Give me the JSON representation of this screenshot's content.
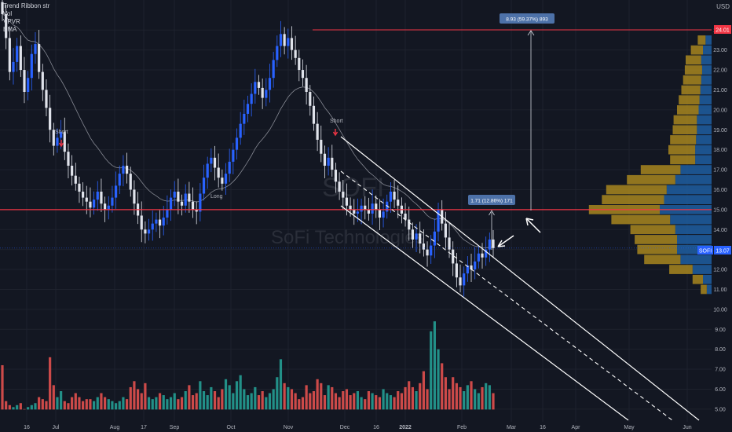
{
  "legend": {
    "items": [
      "Trend Ribbon str",
      "Vol",
      "VPVR",
      "EMA"
    ]
  },
  "currency": "USD",
  "watermark": {
    "ticker": "SOFI",
    "name": "SoFi Technologies"
  },
  "chart_data": {
    "type": "candlestick",
    "symbol": "SOFI",
    "x_ticks": [
      "16",
      "Jul",
      "Aug",
      "17",
      "Sep",
      "Oct",
      "Nov",
      "Dec",
      "16",
      "2022",
      "Feb",
      "Mar",
      "16",
      "Apr",
      "May",
      "Jun"
    ],
    "y_ticks": [
      "24.00",
      "23.00",
      "22.00",
      "21.00",
      "20.00",
      "19.00",
      "18.00",
      "17.00",
      "16.00",
      "15.00",
      "14.00",
      "13.00",
      "12.00",
      "11.00",
      "10.00",
      "9.00",
      "8.00",
      "7.00",
      "6.00",
      "5.00"
    ],
    "ylim": [
      4.9,
      25.2
    ],
    "last_price": {
      "ticker": "SOFI",
      "value": "13.07",
      "price": 13.07
    },
    "resistance_level": 15.0,
    "top_level": {
      "label": "24.01",
      "price": 24.01
    },
    "measure_labels": [
      "8.93 (59.37%) 893",
      "1.71 (12.86%) 171"
    ],
    "signal_labels": [
      "Short",
      "Long",
      "Short"
    ],
    "close": [
      24.8,
      23.6,
      21.9,
      22.4,
      23.2,
      22.0,
      20.9,
      21.6,
      22.8,
      23.3,
      21.9,
      21.0,
      20.1,
      19.0,
      18.2,
      18.6,
      18.9,
      17.9,
      17.2,
      16.7,
      16.3,
      15.9,
      15.6,
      15.4,
      15.1,
      15.5,
      15.9,
      15.3,
      15.0,
      15.2,
      15.6,
      16.2,
      16.8,
      17.2,
      16.8,
      16.0,
      15.3,
      14.7,
      14.0,
      13.8,
      14.0,
      14.3,
      14.5,
      14.2,
      14.6,
      15.0,
      15.6,
      15.9,
      15.4,
      15.2,
      15.8,
      15.4,
      15.0,
      14.9,
      15.8,
      16.6,
      17.3,
      17.6,
      17.1,
      16.6,
      16.3,
      16.8,
      17.4,
      18.0,
      18.6,
      19.3,
      19.8,
      20.3,
      20.8,
      21.4,
      21.1,
      20.6,
      21.0,
      21.6,
      22.5,
      23.2,
      23.8,
      23.2,
      23.6,
      23.0,
      22.6,
      22.0,
      21.6,
      20.9,
      20.2,
      19.3,
      18.5,
      17.8,
      17.2,
      17.6,
      17.0,
      16.4,
      15.9,
      15.6,
      15.2,
      15.0,
      14.8,
      14.9,
      15.2,
      15.0,
      14.8,
      15.3,
      15.0,
      14.6,
      14.9,
      15.4,
      15.9,
      15.5,
      15.2,
      14.8,
      14.5,
      14.0,
      13.5,
      13.8,
      13.3,
      13.0,
      12.7,
      13.2,
      13.9,
      15.0,
      14.3,
      13.6,
      13.0,
      12.3,
      11.6,
      11.2,
      11.8,
      12.2,
      12.0,
      12.4,
      12.8,
      12.6,
      13.0,
      13.5,
      13.07
    ],
    "volume_millions": [
      7.2,
      5.4,
      5.2,
      5.1,
      5.2,
      5.3,
      5.0,
      5.1,
      5.2,
      5.3,
      5.6,
      5.5,
      5.4,
      7.6,
      6.2,
      5.6,
      5.9,
      5.4,
      5.3,
      5.6,
      5.8,
      5.6,
      5.4,
      5.5,
      5.5,
      5.4,
      5.6,
      5.8,
      5.6,
      5.5,
      5.4,
      5.3,
      5.4,
      5.6,
      5.5,
      6.1,
      6.4,
      6.0,
      5.8,
      6.3,
      5.6,
      5.5,
      5.6,
      5.8,
      5.7,
      5.5,
      5.6,
      5.8,
      5.5,
      5.6,
      5.9,
      6.2,
      5.7,
      5.8,
      6.4,
      5.9,
      5.7,
      6.1,
      5.9,
      5.6,
      6.0,
      6.5,
      6.2,
      5.8,
      6.4,
      6.7,
      6.0,
      5.7,
      5.8,
      6.1,
      5.7,
      5.9,
      5.6,
      5.8,
      6.0,
      6.6,
      7.5,
      6.3,
      6.1,
      6.0,
      5.8,
      5.5,
      5.6,
      6.2,
      5.8,
      5.9,
      6.5,
      6.3,
      5.7,
      6.2,
      6.1,
      5.8,
      5.6,
      5.9,
      6.0,
      5.7,
      5.8,
      5.9,
      5.6,
      5.5,
      5.9,
      5.8,
      5.7,
      5.6,
      6.0,
      5.8,
      5.7,
      5.6,
      5.9,
      5.8,
      6.1,
      6.4,
      6.1,
      5.9,
      6.3,
      6.9,
      6.0,
      8.9,
      9.4,
      8.0,
      7.3,
      6.6,
      6.0,
      6.6,
      6.3,
      6.1,
      5.9,
      6.2,
      6.4,
      6.0,
      5.8,
      6.1,
      6.3,
      6.2,
      5.8
    ],
    "volume_profile": [
      {
        "price": 23.5,
        "up": 0.35,
        "down": 0.45
      },
      {
        "price": 23.0,
        "up": 0.5,
        "down": 0.7
      },
      {
        "price": 22.5,
        "up": 0.6,
        "down": 0.9
      },
      {
        "price": 22.0,
        "up": 0.55,
        "down": 1.0
      },
      {
        "price": 21.5,
        "up": 0.6,
        "down": 1.05
      },
      {
        "price": 21.0,
        "up": 0.65,
        "down": 1.1
      },
      {
        "price": 20.5,
        "up": 0.7,
        "down": 1.2
      },
      {
        "price": 20.0,
        "up": 0.75,
        "down": 1.25
      },
      {
        "price": 19.5,
        "up": 0.85,
        "down": 1.35
      },
      {
        "price": 19.0,
        "up": 0.85,
        "down": 1.4
      },
      {
        "price": 18.5,
        "up": 0.9,
        "down": 1.5
      },
      {
        "price": 18.0,
        "up": 0.95,
        "down": 1.55
      },
      {
        "price": 17.5,
        "up": 0.95,
        "down": 1.45
      },
      {
        "price": 17.0,
        "up": 1.8,
        "down": 2.3
      },
      {
        "price": 16.5,
        "up": 2.1,
        "down": 2.8
      },
      {
        "price": 16.0,
        "up": 2.6,
        "down": 3.5
      },
      {
        "price": 15.5,
        "up": 2.75,
        "down": 3.6
      },
      {
        "price": 15.0,
        "up": 3.0,
        "down": 4.1
      },
      {
        "price": 14.5,
        "up": 2.4,
        "down": 3.4
      },
      {
        "price": 14.0,
        "up": 2.1,
        "down": 2.6
      },
      {
        "price": 13.5,
        "up": 2.0,
        "down": 2.45
      },
      {
        "price": 13.0,
        "up": 2.0,
        "down": 2.3
      },
      {
        "price": 12.5,
        "up": 1.8,
        "down": 2.1
      },
      {
        "price": 12.0,
        "up": 1.1,
        "down": 1.35
      },
      {
        "price": 11.5,
        "up": 0.5,
        "down": 0.6
      },
      {
        "price": 11.0,
        "up": 0.28,
        "down": 0.35
      }
    ]
  }
}
